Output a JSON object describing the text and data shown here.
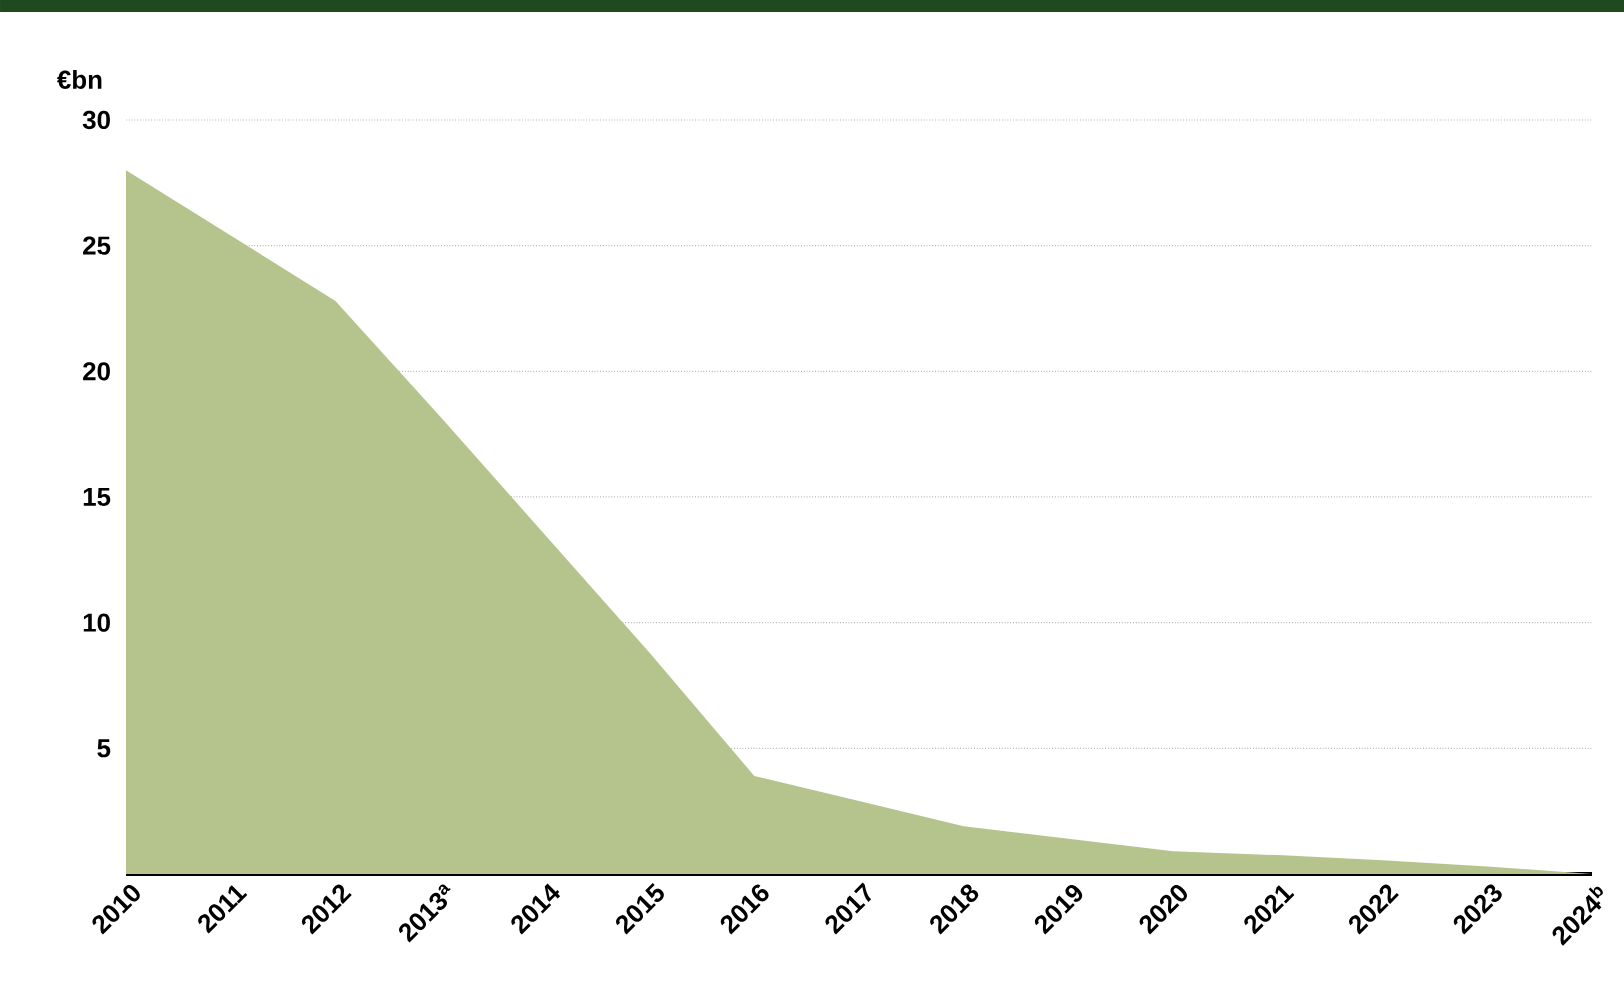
{
  "chart_data": {
    "type": "area",
    "ylabel": "€bn",
    "categories": [
      "2010",
      "2011",
      "2012",
      "2013$^{a}$",
      "2014",
      "2015",
      "2016",
      "2017",
      "2018",
      "2019",
      "2020",
      "2021",
      "2022",
      "2023",
      "2024$^{b}$"
    ],
    "values": [
      28,
      25.4,
      22.8,
      18.2,
      13.5,
      8.8,
      3.9,
      2.9,
      1.9,
      1.4,
      0.9,
      0.75,
      0.55,
      0.3,
      0
    ],
    "color": "#b5c48c",
    "ylim": [
      0,
      30
    ],
    "yticks": [
      5,
      10,
      15,
      20,
      25,
      30
    ],
    "grid": "y"
  }
}
